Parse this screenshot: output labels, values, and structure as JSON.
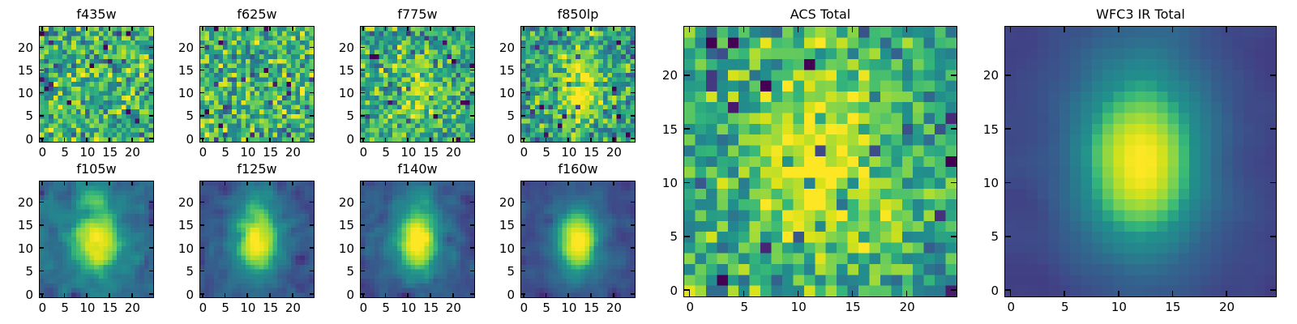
{
  "figure": {
    "background": "#ffffff",
    "text_color": "#000000",
    "axes_border_color": "#000000",
    "colormap": "viridis",
    "colormap_min_color": "#440154",
    "colormap_mid_color": "#21918c",
    "colormap_max_color": "#fde725"
  },
  "chart_data": [
    {
      "title": "f435w",
      "type": "heatmap",
      "colormap": "viridis",
      "grid_cols": 25,
      "grid_rows": 25,
      "x_range": [
        -0.5,
        24.5
      ],
      "y_range": [
        -0.5,
        24.5
      ],
      "x_ticks": [
        0,
        5,
        10,
        15,
        20
      ],
      "y_ticks": [
        0,
        5,
        10,
        15,
        20
      ],
      "model": {
        "seed": 17,
        "background": 0.6,
        "noise_sigma": 0.17,
        "outlier_prob": 0.05,
        "outlier_scale": -0.5,
        "smooth": 0,
        "sources": []
      }
    },
    {
      "title": "f625w",
      "type": "heatmap",
      "colormap": "viridis",
      "grid_cols": 25,
      "grid_rows": 25,
      "x_range": [
        -0.5,
        24.5
      ],
      "y_range": [
        -0.5,
        24.5
      ],
      "x_ticks": [
        0,
        5,
        10,
        15,
        20
      ],
      "y_ticks": [
        0,
        5,
        10,
        15,
        20
      ],
      "model": {
        "seed": 29,
        "background": 0.6,
        "noise_sigma": 0.17,
        "outlier_prob": 0.05,
        "outlier_scale": -0.5,
        "smooth": 0,
        "sources": []
      }
    },
    {
      "title": "f775w",
      "type": "heatmap",
      "colormap": "viridis",
      "grid_cols": 25,
      "grid_rows": 25,
      "x_range": [
        -0.5,
        24.5
      ],
      "y_range": [
        -0.5,
        24.5
      ],
      "x_ticks": [
        0,
        5,
        10,
        15,
        20
      ],
      "y_ticks": [
        0,
        5,
        10,
        15,
        20
      ],
      "model": {
        "seed": 43,
        "background": 0.55,
        "noise_sigma": 0.16,
        "outlier_prob": 0.045,
        "outlier_scale": -0.5,
        "smooth": 0,
        "sources": [
          {
            "x": 12,
            "y": 11,
            "amplitude": 0.27,
            "sigma_x": 3.2,
            "sigma_y": 4.8
          }
        ]
      }
    },
    {
      "title": "f850lp",
      "type": "heatmap",
      "colormap": "viridis",
      "grid_cols": 25,
      "grid_rows": 25,
      "x_range": [
        -0.5,
        24.5
      ],
      "y_range": [
        -0.5,
        24.5
      ],
      "x_ticks": [
        0,
        5,
        10,
        15,
        20
      ],
      "y_ticks": [
        0,
        5,
        10,
        15,
        20
      ],
      "model": {
        "seed": 57,
        "background": 0.52,
        "noise_sigma": 0.16,
        "outlier_prob": 0.04,
        "outlier_scale": -0.5,
        "smooth": 0,
        "sources": [
          {
            "x": 12.5,
            "y": 10.5,
            "amplitude": 0.45,
            "sigma_x": 3.4,
            "sigma_y": 5.2
          }
        ]
      }
    },
    {
      "title": "f105w",
      "type": "heatmap",
      "colormap": "viridis",
      "grid_cols": 25,
      "grid_rows": 25,
      "x_range": [
        -0.5,
        24.5
      ],
      "y_range": [
        -0.5,
        24.5
      ],
      "x_ticks": [
        0,
        5,
        10,
        15,
        20
      ],
      "y_ticks": [
        0,
        5,
        10,
        15,
        20
      ],
      "model": {
        "seed": 71,
        "background": 0.3,
        "noise_sigma": 0.11,
        "outlier_prob": 0.03,
        "outlier_scale": -0.35,
        "smooth": 1,
        "sources": [
          {
            "x": 12,
            "y": 11.5,
            "amplitude": 0.52,
            "sigma_x": 3.0,
            "sigma_y": 4.0
          },
          {
            "x": 12,
            "y": 12,
            "amplitude": 0.22,
            "sigma_x": 6.0,
            "sigma_y": 7.5
          },
          {
            "x": 11.5,
            "y": 21.5,
            "amplitude": 0.25,
            "sigma_x": 2.0,
            "sigma_y": 2.2
          }
        ]
      }
    },
    {
      "title": "f125w",
      "type": "heatmap",
      "colormap": "viridis",
      "grid_cols": 25,
      "grid_rows": 25,
      "x_range": [
        -0.5,
        24.5
      ],
      "y_range": [
        -0.5,
        24.5
      ],
      "x_ticks": [
        0,
        5,
        10,
        15,
        20
      ],
      "y_ticks": [
        0,
        5,
        10,
        15,
        20
      ],
      "model": {
        "seed": 83,
        "background": 0.22,
        "noise_sigma": 0.08,
        "outlier_prob": 0.02,
        "outlier_scale": -0.3,
        "smooth": 1,
        "sources": [
          {
            "x": 12,
            "y": 11.5,
            "amplitude": 0.6,
            "sigma_x": 2.7,
            "sigma_y": 4.3
          },
          {
            "x": 12,
            "y": 12,
            "amplitude": 0.24,
            "sigma_x": 5.5,
            "sigma_y": 7.5
          },
          {
            "x": 12,
            "y": 21,
            "amplitude": 0.1,
            "sigma_x": 2.5,
            "sigma_y": 3.0
          }
        ]
      }
    },
    {
      "title": "f140w",
      "type": "heatmap",
      "colormap": "viridis",
      "grid_cols": 25,
      "grid_rows": 25,
      "x_range": [
        -0.5,
        24.5
      ],
      "y_range": [
        -0.5,
        24.5
      ],
      "x_ticks": [
        0,
        5,
        10,
        15,
        20
      ],
      "y_ticks": [
        0,
        5,
        10,
        15,
        20
      ],
      "model": {
        "seed": 97,
        "background": 0.22,
        "noise_sigma": 0.08,
        "outlier_prob": 0.02,
        "outlier_scale": -0.3,
        "smooth": 1,
        "sources": [
          {
            "x": 12,
            "y": 11.5,
            "amplitude": 0.63,
            "sigma_x": 2.7,
            "sigma_y": 4.2
          },
          {
            "x": 12,
            "y": 12,
            "amplitude": 0.23,
            "sigma_x": 5.5,
            "sigma_y": 7.5
          },
          {
            "x": 12.5,
            "y": 21.5,
            "amplitude": 0.12,
            "sigma_x": 2.2,
            "sigma_y": 2.5
          }
        ]
      }
    },
    {
      "title": "f160w",
      "type": "heatmap",
      "colormap": "viridis",
      "grid_cols": 25,
      "grid_rows": 25,
      "x_range": [
        -0.5,
        24.5
      ],
      "y_range": [
        -0.5,
        24.5
      ],
      "x_ticks": [
        0,
        5,
        10,
        15,
        20
      ],
      "y_ticks": [
        0,
        5,
        10,
        15,
        20
      ],
      "model": {
        "seed": 113,
        "background": 0.2,
        "noise_sigma": 0.055,
        "outlier_prob": 0.015,
        "outlier_scale": -0.25,
        "smooth": 1,
        "sources": [
          {
            "x": 12,
            "y": 11.5,
            "amplitude": 0.66,
            "sigma_x": 2.6,
            "sigma_y": 4.0
          },
          {
            "x": 12,
            "y": 12,
            "amplitude": 0.22,
            "sigma_x": 5.2,
            "sigma_y": 7.2
          }
        ]
      }
    },
    {
      "title": "ACS Total",
      "type": "heatmap",
      "colormap": "viridis",
      "grid_cols": 25,
      "grid_rows": 25,
      "x_range": [
        -0.5,
        24.5
      ],
      "y_range": [
        -0.5,
        24.5
      ],
      "x_ticks": [
        0,
        5,
        10,
        15,
        20
      ],
      "y_ticks": [
        0,
        5,
        10,
        15,
        20
      ],
      "model": {
        "seed": 131,
        "background": 0.52,
        "noise_sigma": 0.15,
        "outlier_prob": 0.035,
        "outlier_scale": -0.5,
        "smooth": 0,
        "sources": [
          {
            "x": 12,
            "y": 12,
            "amplitude": 0.36,
            "sigma_x": 3.4,
            "sigma_y": 5.8
          },
          {
            "x": 12,
            "y": 12,
            "amplitude": 0.12,
            "sigma_x": 7.0,
            "sigma_y": 9.0
          },
          {
            "x": 0,
            "y": 0,
            "amplitude": 0.5,
            "sigma_x": 0.8,
            "sigma_y": 0.8
          }
        ]
      }
    },
    {
      "title": "WFC3 IR Total",
      "type": "heatmap",
      "colormap": "viridis",
      "grid_cols": 25,
      "grid_rows": 25,
      "x_range": [
        -0.5,
        24.5
      ],
      "y_range": [
        -0.5,
        24.5
      ],
      "x_ticks": [
        0,
        5,
        10,
        15,
        20
      ],
      "y_ticks": [
        0,
        5,
        10,
        15,
        20
      ],
      "model": {
        "seed": 151,
        "background": 0.16,
        "noise_sigma": 0.03,
        "outlier_prob": 0,
        "outlier_scale": 0,
        "smooth": 2,
        "sources": [
          {
            "x": 12,
            "y": 12,
            "amplitude": 0.6,
            "sigma_x": 3.1,
            "sigma_y": 4.4
          },
          {
            "x": 12,
            "y": 13,
            "amplitude": 0.27,
            "sigma_x": 5.5,
            "sigma_y": 9.0
          }
        ]
      }
    }
  ]
}
